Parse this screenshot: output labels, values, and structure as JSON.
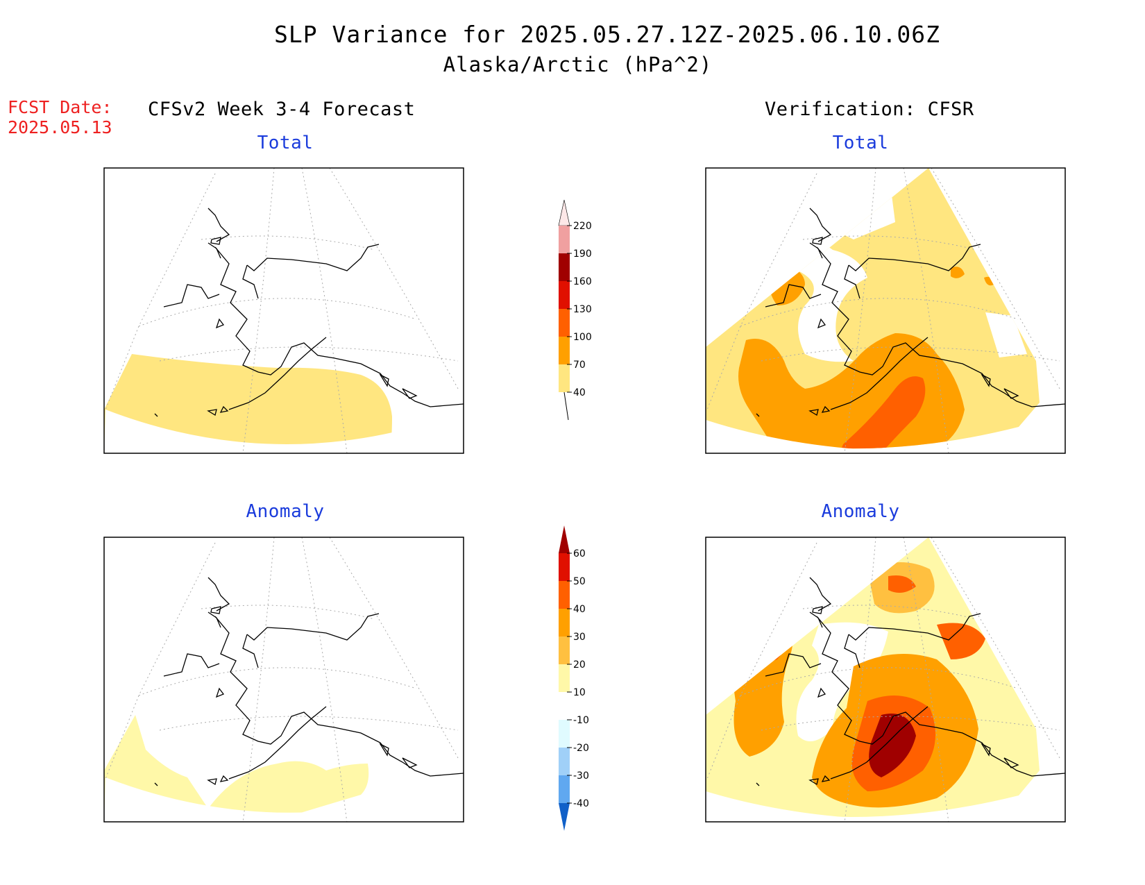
{
  "header": {
    "title": "SLP Variance for 2025.05.27.12Z-2025.06.10.06Z",
    "subtitle": "Alaska/Arctic (hPa^2)",
    "fcst_date_label": "FCST Date:",
    "fcst_date_value": "2025.05.13"
  },
  "columns": {
    "left_title": "CFSv2 Week 3-4 Forecast",
    "right_title": "Verification: CFSR"
  },
  "panels": {
    "forecast_total_title": "Total",
    "verification_total_title": "Total",
    "forecast_anomaly_title": "Anomaly",
    "verification_anomaly_title": "Anomaly"
  },
  "colorbars": {
    "total": {
      "levels": [
        "40",
        "70",
        "100",
        "130",
        "160",
        "190",
        "220"
      ],
      "colors": [
        "#ffe680",
        "#ffa000",
        "#ff6000",
        "#e01000",
        "#a00000",
        "#f0a0a0",
        "#fde8e8"
      ]
    },
    "anomaly": {
      "levels": [
        "60",
        "50",
        "40",
        "30",
        "20",
        "10",
        "-10",
        "-20",
        "-30",
        "-40"
      ],
      "colors": [
        "#a00000",
        "#e01000",
        "#ff6000",
        "#ffa000",
        "#ffc040",
        "#fff8a8",
        "#ffffff",
        "#e0fbff",
        "#a0d0f8",
        "#60a8f0",
        "#2078e8",
        "#1060c8"
      ]
    }
  },
  "legend_colors": {
    "title_blue": "#1a3bdc",
    "fcst_red": "#ee2020"
  }
}
